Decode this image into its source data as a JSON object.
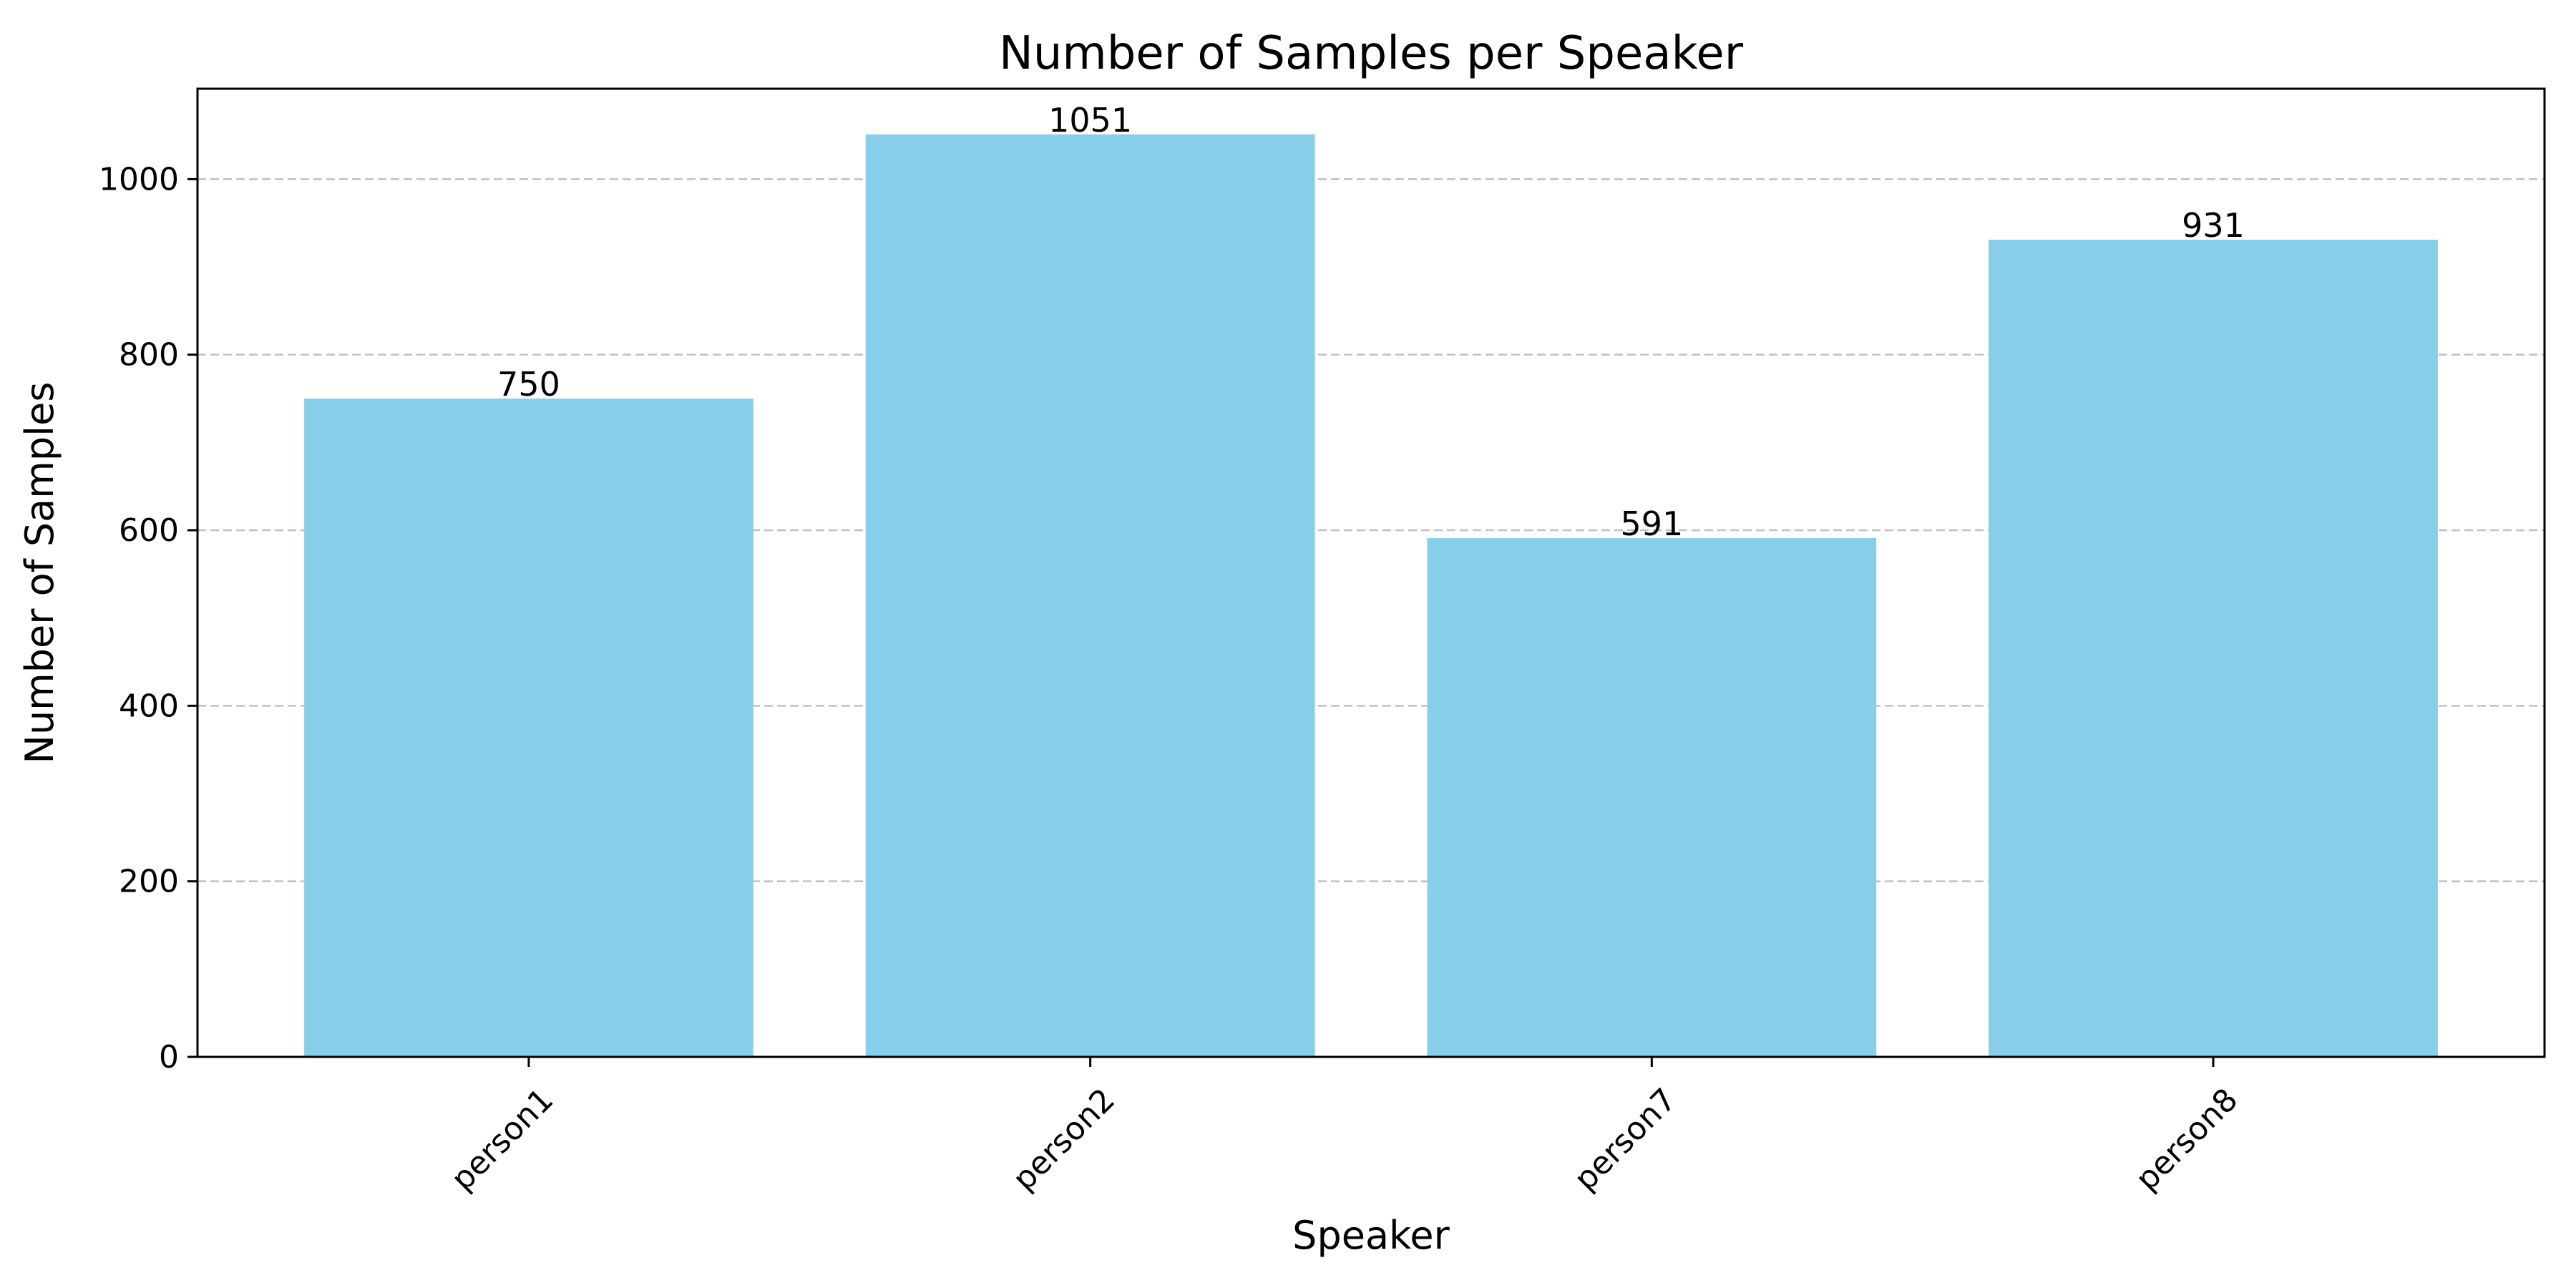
{
  "chart_data": {
    "type": "bar",
    "title": "Number of Samples per Speaker",
    "xlabel": "Speaker",
    "ylabel": "Number of Samples",
    "categories": [
      "person1",
      "person2",
      "person7",
      "person8"
    ],
    "values": [
      750,
      1051,
      591,
      931
    ],
    "value_labels": [
      "750",
      "1051",
      "591",
      "931"
    ],
    "ylim": [
      0,
      1103
    ],
    "yticks": [
      0,
      200,
      400,
      600,
      800,
      1000
    ],
    "ytick_labels": [
      "0",
      "200",
      "400",
      "600",
      "800",
      "1000"
    ],
    "grid": "y-dashed",
    "legend": "none",
    "colors": {
      "bar": "#87CEEB",
      "grid": "#c0c0c0",
      "axis": "#000000"
    }
  }
}
